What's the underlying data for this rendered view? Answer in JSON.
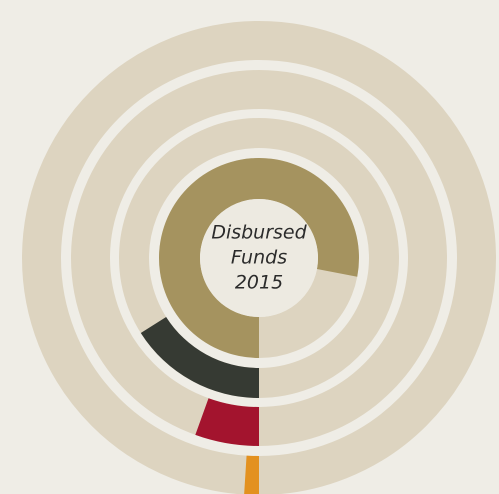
{
  "chart_data": {
    "type": "radial_bar",
    "title": [
      "Disbursed",
      "Funds",
      "2015"
    ],
    "ylim": [
      0,
      100
    ],
    "values": [
      78,
      16,
      5.5,
      1
    ],
    "colors": [
      "#a5935f",
      "#363a33",
      "#a3142e",
      "#e3911f"
    ],
    "track_color": "#ddd4c0"
  }
}
